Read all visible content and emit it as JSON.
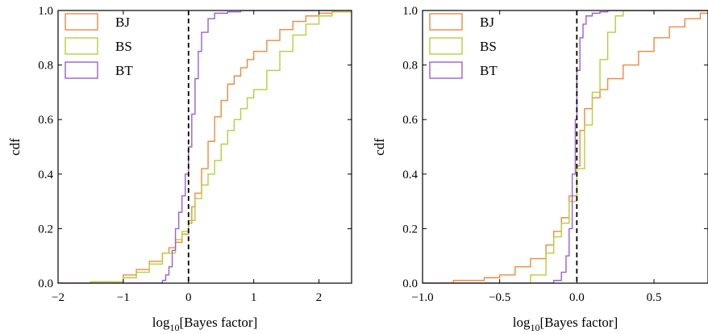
{
  "chart_data": [
    {
      "type": "line",
      "step": true,
      "xlabel": "log10[Bayes factor]",
      "xlabel_parts": {
        "pre": "log",
        "sub": "10",
        "post": "[Bayes factor]"
      },
      "ylabel": "cdf",
      "xlim": [
        -2,
        2.5
      ],
      "ylim": [
        0,
        1
      ],
      "xticks": [
        -2,
        -1,
        0,
        1,
        2
      ],
      "xtick_labels": [
        "−2",
        "−1",
        "0",
        "1",
        "2"
      ],
      "yticks": [
        0,
        0.2,
        0.4,
        0.6,
        0.8,
        1.0
      ],
      "ytick_labels": [
        "0.0",
        "0.2",
        "0.4",
        "0.6",
        "0.8",
        "1.0"
      ],
      "grid": false,
      "legend_position": "top-left",
      "reference_line_x": 0,
      "series": [
        {
          "name": "BJ",
          "color": "#f08a3c",
          "x": [
            -2.0,
            -1.5,
            -1.0,
            -0.8,
            -0.6,
            -0.4,
            -0.3,
            -0.2,
            -0.1,
            0.0,
            0.05,
            0.1,
            0.2,
            0.3,
            0.4,
            0.5,
            0.6,
            0.7,
            0.8,
            0.9,
            1.0,
            1.2,
            1.4,
            1.6,
            1.8,
            2.0,
            2.2,
            2.5
          ],
          "y": [
            0.0,
            0.005,
            0.03,
            0.05,
            0.08,
            0.11,
            0.13,
            0.15,
            0.18,
            0.22,
            0.28,
            0.33,
            0.42,
            0.52,
            0.61,
            0.67,
            0.73,
            0.76,
            0.79,
            0.82,
            0.85,
            0.89,
            0.93,
            0.96,
            0.98,
            0.99,
            0.995,
            1.0
          ]
        },
        {
          "name": "BS",
          "color": "#b5cf3a",
          "x": [
            -2.0,
            -1.5,
            -1.0,
            -0.8,
            -0.6,
            -0.4,
            -0.2,
            -0.1,
            0.0,
            0.1,
            0.2,
            0.3,
            0.4,
            0.5,
            0.6,
            0.7,
            0.8,
            0.9,
            1.0,
            1.2,
            1.4,
            1.6,
            1.8,
            2.0,
            2.2,
            2.5
          ],
          "y": [
            0.0,
            0.005,
            0.02,
            0.04,
            0.07,
            0.11,
            0.16,
            0.19,
            0.23,
            0.31,
            0.36,
            0.4,
            0.45,
            0.51,
            0.56,
            0.6,
            0.64,
            0.68,
            0.71,
            0.78,
            0.85,
            0.91,
            0.95,
            0.98,
            0.995,
            1.0
          ]
        },
        {
          "name": "BT",
          "color": "#9b5fd2",
          "x": [
            -2.0,
            -0.5,
            -0.4,
            -0.35,
            -0.3,
            -0.25,
            -0.2,
            -0.15,
            -0.1,
            -0.05,
            0.0,
            0.05,
            0.1,
            0.15,
            0.2,
            0.3,
            0.4,
            0.6,
            0.8,
            2.5
          ],
          "y": [
            0.0,
            0.0,
            0.01,
            0.03,
            0.06,
            0.12,
            0.2,
            0.26,
            0.32,
            0.4,
            0.5,
            0.62,
            0.75,
            0.85,
            0.92,
            0.97,
            0.99,
            0.995,
            1.0,
            1.0
          ]
        }
      ]
    },
    {
      "type": "line",
      "step": true,
      "xlabel": "log10[Bayes factor]",
      "xlabel_parts": {
        "pre": "log",
        "sub": "10",
        "post": "[Bayes factor]"
      },
      "ylabel": "cdf",
      "xlim": [
        -1.0,
        0.85
      ],
      "ylim": [
        0,
        1
      ],
      "xticks": [
        -1.0,
        -0.5,
        0.0,
        0.5
      ],
      "xtick_labels": [
        "−1.0",
        "−0.5",
        "0.0",
        "0.5"
      ],
      "yticks": [
        0,
        0.2,
        0.4,
        0.6,
        0.8,
        1.0
      ],
      "ytick_labels": [
        "0.0",
        "0.2",
        "0.4",
        "0.6",
        "0.8",
        "1.0"
      ],
      "grid": false,
      "legend_position": "top-left",
      "reference_line_x": 0,
      "series": [
        {
          "name": "BJ",
          "color": "#f08a3c",
          "x": [
            -1.0,
            -0.8,
            -0.6,
            -0.5,
            -0.4,
            -0.3,
            -0.2,
            -0.15,
            -0.1,
            -0.05,
            0.0,
            0.02,
            0.05,
            0.1,
            0.15,
            0.2,
            0.3,
            0.4,
            0.5,
            0.6,
            0.7,
            0.8,
            0.85
          ],
          "y": [
            0.0,
            0.01,
            0.02,
            0.03,
            0.06,
            0.09,
            0.14,
            0.19,
            0.24,
            0.32,
            0.43,
            0.56,
            0.64,
            0.68,
            0.71,
            0.75,
            0.8,
            0.85,
            0.9,
            0.94,
            0.97,
            0.99,
            1.0
          ]
        },
        {
          "name": "BS",
          "color": "#b5cf3a",
          "x": [
            -1.0,
            -0.4,
            -0.3,
            -0.2,
            -0.15,
            -0.1,
            -0.05,
            0.0,
            0.05,
            0.1,
            0.15,
            0.2,
            0.25,
            0.3,
            0.85
          ],
          "y": [
            0.0,
            0.0,
            0.03,
            0.11,
            0.17,
            0.22,
            0.3,
            0.42,
            0.58,
            0.7,
            0.82,
            0.92,
            0.98,
            1.0,
            1.0
          ]
        },
        {
          "name": "BT",
          "color": "#9b5fd2",
          "x": [
            -1.0,
            -0.2,
            -0.15,
            -0.1,
            -0.07,
            -0.05,
            -0.03,
            -0.01,
            0.0,
            0.02,
            0.04,
            0.06,
            0.1,
            0.15,
            0.2,
            0.85
          ],
          "y": [
            0.0,
            0.0,
            0.01,
            0.04,
            0.1,
            0.2,
            0.4,
            0.6,
            0.78,
            0.9,
            0.95,
            0.98,
            0.99,
            0.995,
            1.0,
            1.0
          ]
        }
      ]
    }
  ]
}
